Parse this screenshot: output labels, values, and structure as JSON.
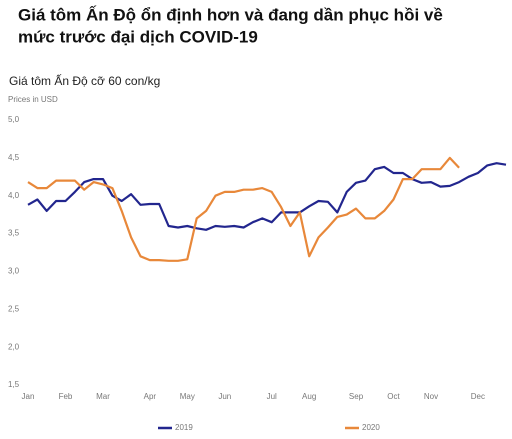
{
  "chart_data": {
    "type": "line",
    "title": [
      "Giá tôm Ấn Độ ổn định hơn và đang dần phục hồi về",
      "mức trước đại dịch COVID-19"
    ],
    "subtitle": "Giá tôm Ấn Độ cỡ 60 con/kg",
    "y_label": "Prices in USD",
    "categories": [
      "Jan",
      null,
      null,
      null,
      "Feb",
      null,
      null,
      null,
      "Mar",
      null,
      null,
      null,
      null,
      "Apr",
      null,
      null,
      null,
      "May",
      null,
      null,
      null,
      "Jun",
      null,
      null,
      null,
      null,
      "Jul",
      null,
      null,
      null,
      "Aug",
      null,
      null,
      null,
      null,
      "Sep",
      null,
      null,
      null,
      "Oct",
      null,
      null,
      null,
      "Nov",
      null,
      null,
      null,
      null,
      "Dec",
      null,
      null,
      null
    ],
    "series": [
      {
        "name": "2019",
        "color": "#22268e",
        "values": [
          3.88,
          3.95,
          3.8,
          3.93,
          3.93,
          4.05,
          4.18,
          4.22,
          4.22,
          4.0,
          3.93,
          4.02,
          3.88,
          3.89,
          3.89,
          3.6,
          3.58,
          3.6,
          3.57,
          3.55,
          3.6,
          3.59,
          3.6,
          3.58,
          3.65,
          3.7,
          3.65,
          3.78,
          3.78,
          3.78,
          3.86,
          3.93,
          3.92,
          3.78,
          4.05,
          4.17,
          4.2,
          4.35,
          4.38,
          4.3,
          4.3,
          4.22,
          4.17,
          4.18,
          4.12,
          4.13,
          4.18,
          4.25,
          4.3,
          4.4,
          4.43,
          4.41
        ]
      },
      {
        "name": "2020",
        "color": "#e8883a",
        "values": [
          4.18,
          4.1,
          4.1,
          4.2,
          4.2,
          4.2,
          4.08,
          4.18,
          4.15,
          4.1,
          3.8,
          3.45,
          3.2,
          3.15,
          3.15,
          3.14,
          3.14,
          3.16,
          3.7,
          3.8,
          4.0,
          4.05,
          4.05,
          4.08,
          4.08,
          4.1,
          4.05,
          3.85,
          3.6,
          3.78,
          3.2,
          3.45,
          3.58,
          3.72,
          3.75,
          3.83,
          3.7,
          3.7,
          3.8,
          3.95,
          4.22,
          4.22,
          4.35,
          4.35,
          4.35,
          4.5,
          4.37,
          null,
          null,
          null,
          null,
          null
        ]
      }
    ],
    "ylim": [
      1.5,
      5.0
    ],
    "yticks": [
      {
        "value": 1.5,
        "label": "1,5"
      },
      {
        "value": 2.0,
        "label": "2,0"
      },
      {
        "value": 2.5,
        "label": "2,5"
      },
      {
        "value": 3.0,
        "label": "3,0"
      },
      {
        "value": 3.5,
        "label": "3,5"
      },
      {
        "value": 4.0,
        "label": "4,0"
      },
      {
        "value": 4.5,
        "label": "4,5"
      },
      {
        "value": 5.0,
        "label": "5,0"
      }
    ],
    "grid": false,
    "legend": "bottom"
  }
}
